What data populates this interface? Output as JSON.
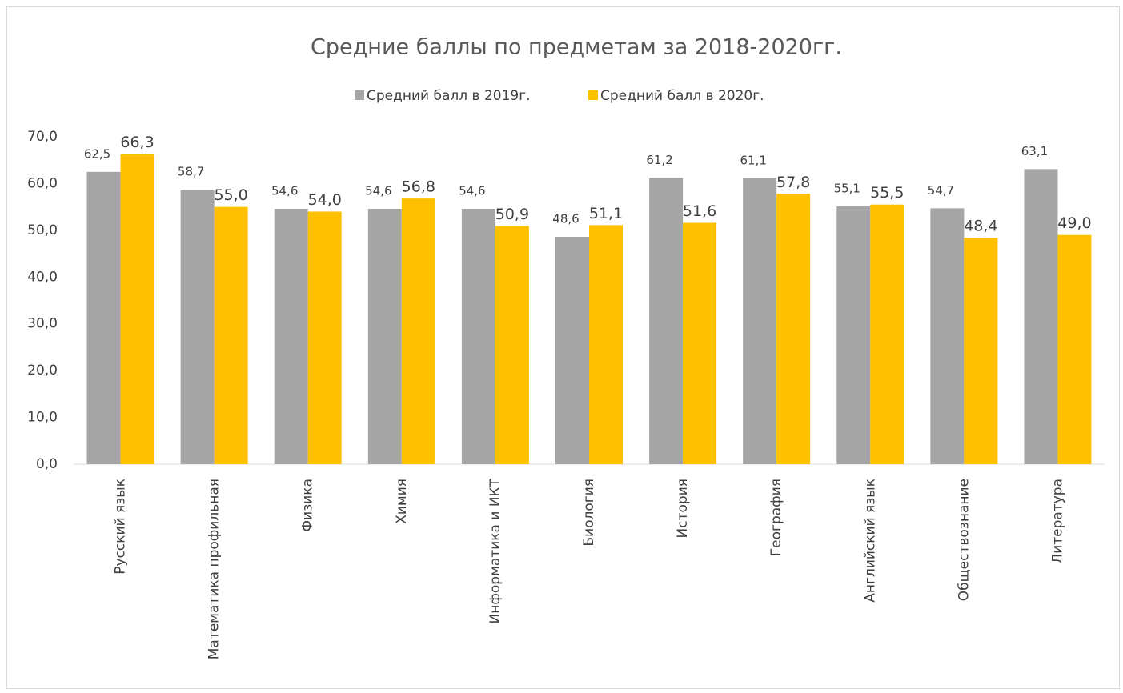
{
  "chart_data": {
    "type": "bar",
    "title": "Средние баллы по предметам за 2018-2020гг.",
    "categories": [
      "Русский язык",
      "Математика профильная",
      "Физика",
      "Химия",
      "Информатика и ИКТ",
      "Биология",
      "История",
      "География",
      "Английский язык",
      "Обществознание",
      "Литература"
    ],
    "series": [
      {
        "name": "Средний балл в 2019г.",
        "color": "#a5a5a5",
        "values": [
          62.5,
          58.7,
          54.6,
          54.6,
          54.6,
          48.6,
          61.2,
          61.1,
          55.1,
          54.7,
          63.1
        ],
        "value_labels": [
          "62,5",
          "58,7",
          "54,6",
          "54,6",
          "54,6",
          "48,6",
          "61,2",
          "61,1",
          "55,1",
          "54,7",
          "63,1"
        ]
      },
      {
        "name": "Средний балл в 2020г.",
        "color": "#ffc000",
        "values": [
          66.3,
          55.0,
          54.0,
          56.8,
          50.9,
          51.1,
          51.6,
          57.8,
          55.5,
          48.4,
          49.0
        ],
        "value_labels": [
          "66,3",
          "55,0",
          "54,0",
          "56,8",
          "50,9",
          "51,1",
          "51,6",
          "57,8",
          "55,5",
          "48,4",
          "49,0"
        ]
      }
    ],
    "ylim": [
      0,
      70
    ],
    "yticks": [
      {
        "value": 0,
        "label": "0,0"
      },
      {
        "value": 10,
        "label": "10,0"
      },
      {
        "value": 20,
        "label": "20,0"
      },
      {
        "value": 30,
        "label": "30,0"
      },
      {
        "value": 40,
        "label": "40,0"
      },
      {
        "value": 50,
        "label": "50,0"
      },
      {
        "value": 60,
        "label": "60,0"
      },
      {
        "value": 70,
        "label": "70,0"
      }
    ],
    "grid": false,
    "legend": "top"
  }
}
